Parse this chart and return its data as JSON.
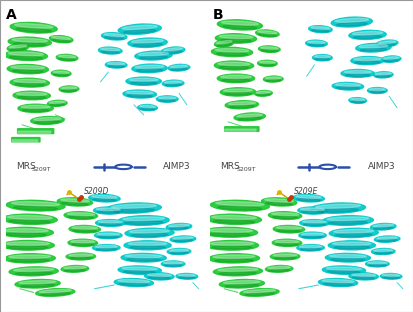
{
  "background_color": "#ffffff",
  "figure_width": 4.13,
  "figure_height": 3.12,
  "dpi": 100,
  "panel_label_A": "A",
  "panel_label_B": "B",
  "panel_label_fontsize": 10,
  "panel_label_weight": "bold",
  "legend_text_left": "MRS",
  "legend_subscript": "S209T",
  "legend_text_right": "AIMP3",
  "legend_symbol_color": "#2b4fa8",
  "legend_fontsize": 6.5,
  "mutation_label_A": "S209D",
  "mutation_label_B": "S209E",
  "mutation_label_fontsize": 5.5,
  "border_color": "#999999",
  "border_linewidth": 0.8,
  "green": "#1ec832",
  "green_dark": "#0a8a1a",
  "green_mid": "#16a826",
  "cyan": "#00c8c8",
  "cyan_dark": "#007a8a",
  "cyan_mid": "#009aaa",
  "stick_color": "#c8a000",
  "helix_alpha": 0.92,
  "helix_shade_alpha": 0.35
}
